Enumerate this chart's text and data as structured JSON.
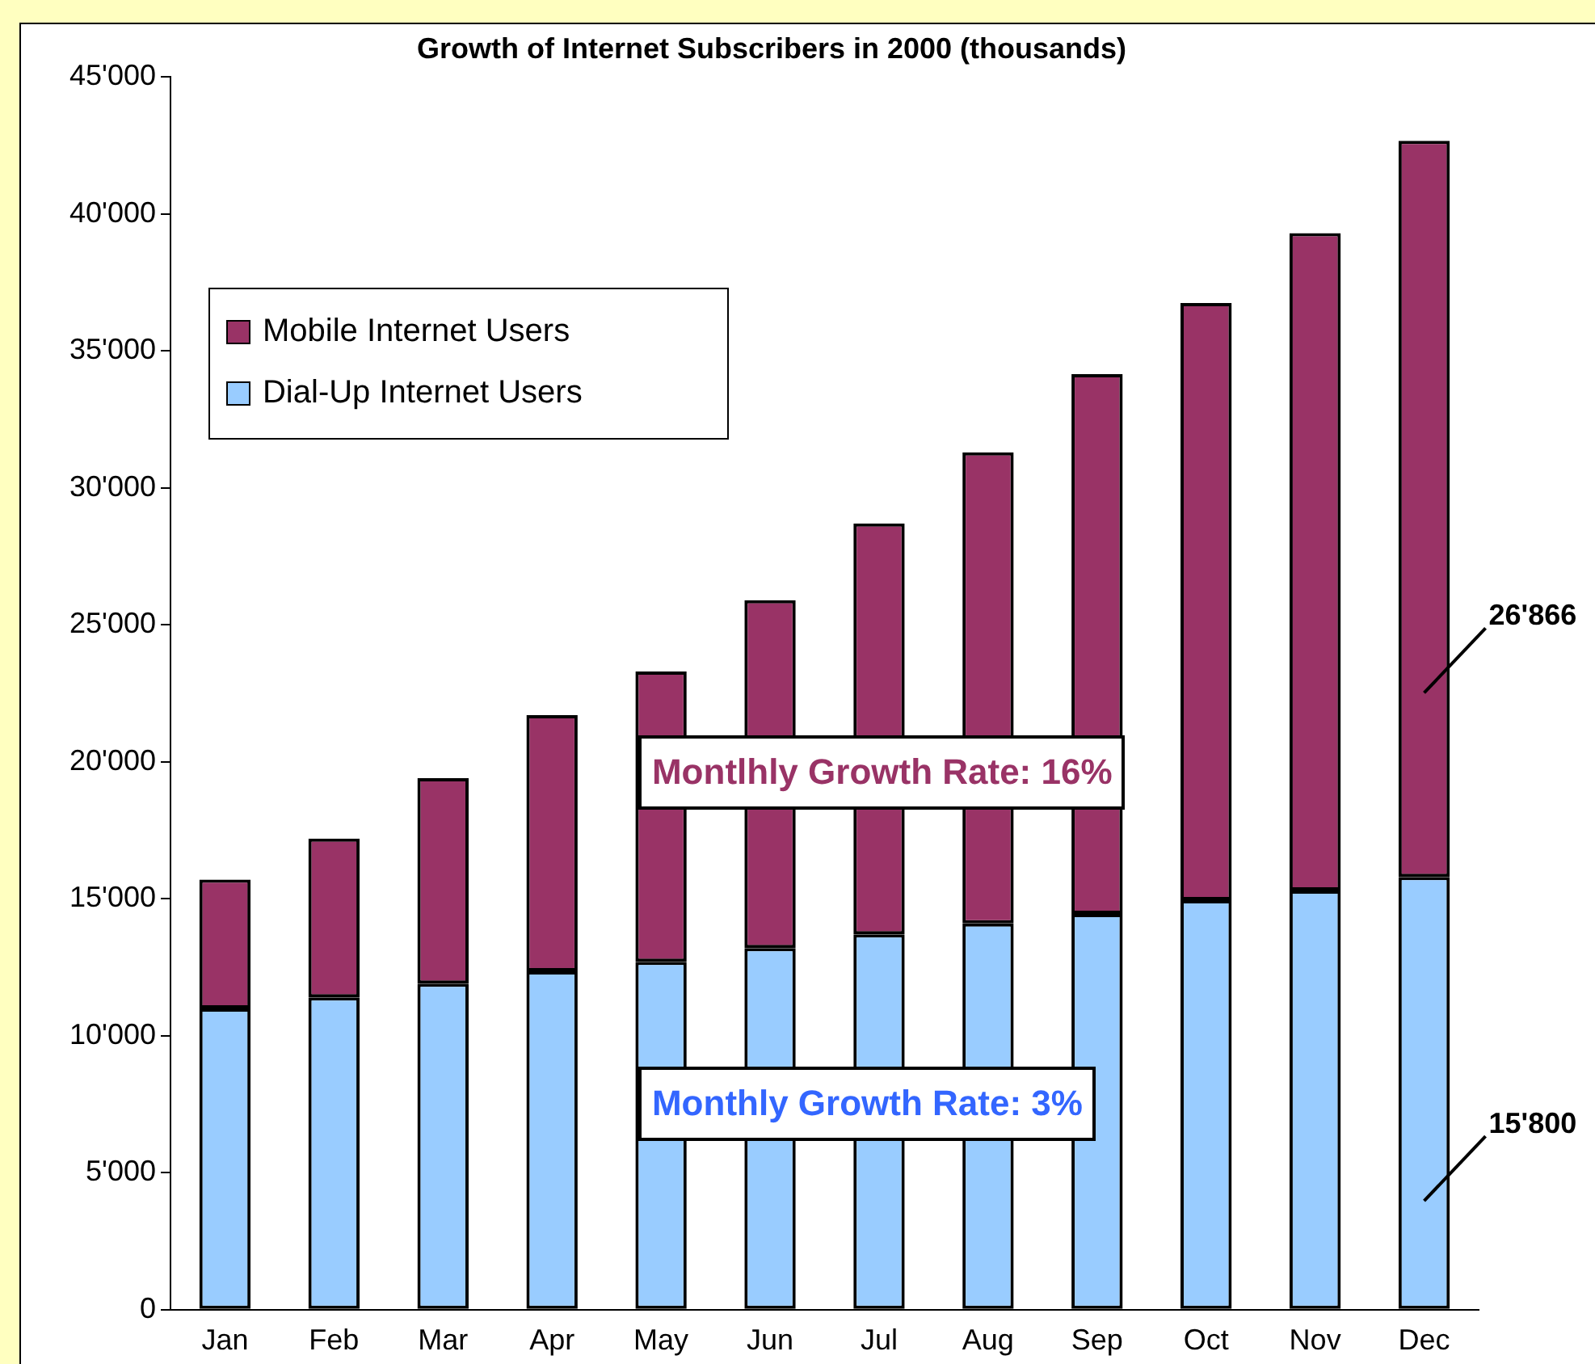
{
  "chart_data": {
    "type": "bar",
    "title": "Growth of Internet Subscribers in 2000 (thousands)",
    "categories": [
      "Jan",
      "Feb",
      "Mar",
      "Apr",
      "May",
      "Jun",
      "Jul",
      "Aug",
      "Sep",
      "Oct",
      "Nov",
      "Dec"
    ],
    "stacked": true,
    "series": [
      {
        "name": "Dial-Up Internet Users",
        "color": "#99ccff",
        "values": [
          11000,
          11400,
          11900,
          12350,
          12700,
          13200,
          13700,
          14100,
          14450,
          14950,
          15300,
          15800
        ],
        "value_labels": [
          null,
          null,
          null,
          null,
          null,
          null,
          null,
          null,
          null,
          null,
          null,
          "15'800"
        ]
      },
      {
        "name": "Mobile Internet Users",
        "color": "#993366",
        "values": [
          4700,
          5800,
          7500,
          9350,
          10600,
          12700,
          15000,
          17200,
          19700,
          21800,
          24000,
          26866
        ],
        "value_labels": [
          null,
          null,
          null,
          null,
          null,
          null,
          null,
          null,
          null,
          null,
          null,
          "26'866"
        ]
      }
    ],
    "ylim": [
      0,
      45000
    ],
    "yticks": [
      {
        "value": 0,
        "label": "0"
      },
      {
        "value": 5000,
        "label": "5'000"
      },
      {
        "value": 10000,
        "label": "10'000"
      },
      {
        "value": 15000,
        "label": "15'000"
      },
      {
        "value": 20000,
        "label": "20'000"
      },
      {
        "value": 25000,
        "label": "25'000"
      },
      {
        "value": 30000,
        "label": "30'000"
      },
      {
        "value": 35000,
        "label": "35'000"
      },
      {
        "value": 40000,
        "label": "40'000"
      },
      {
        "value": 45000,
        "label": "45'000"
      }
    ],
    "annotations": [
      "Montlhly Growth Rate: 16%",
      "Monthly Growth Rate: 3%"
    ],
    "grid": false,
    "legend": "top left"
  }
}
